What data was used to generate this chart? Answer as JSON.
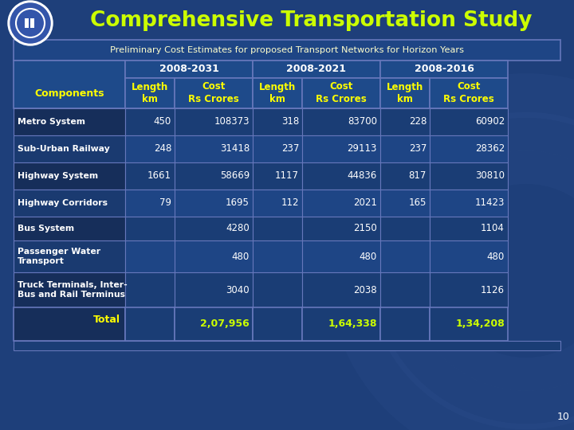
{
  "title": "Comprehensive Transportation Study",
  "subtitle": "Preliminary Cost Estimates for proposed Transport Networks for Horizon Years",
  "bg_color": "#1e3f7a",
  "title_color": "#ccff00",
  "subtitle_color": "#ffffcc",
  "header_year_color": "#ffffff",
  "component_color": "#ffff00",
  "col_header_color": "#ffff00",
  "data_color": "#ffffff",
  "total_color": "#ffff00",
  "total_data_color": "#ccff00",
  "page_num": "10",
  "years": [
    "2008-2031",
    "2008-2021",
    "2008-2016"
  ],
  "col_headers": [
    "Length\nkm",
    "Cost\nRs Crores",
    "Length\nkm",
    "Cost\nRs Crores",
    "Length\nkm",
    "Cost\nRs Crores"
  ],
  "rows": [
    {
      "component": "Metro System",
      "data": [
        "450",
        "108373",
        "318",
        "83700",
        "228",
        "60902"
      ]
    },
    {
      "component": "Sub-Urban Railway",
      "data": [
        "248",
        "31418",
        "237",
        "29113",
        "237",
        "28362"
      ]
    },
    {
      "component": "Highway System",
      "data": [
        "1661",
        "58669",
        "1117",
        "44836",
        "817",
        "30810"
      ]
    },
    {
      "component": "Highway Corridors",
      "data": [
        "79",
        "1695",
        "112",
        "2021",
        "165",
        "11423"
      ]
    },
    {
      "component": "Bus System",
      "data": [
        "",
        "4280",
        "",
        "2150",
        "",
        "1104"
      ]
    },
    {
      "component": "Passenger Water\nTransport",
      "data": [
        "",
        "480",
        "",
        "480",
        "",
        "480"
      ]
    },
    {
      "component": "Truck Terminals, Inter-\nBus and Rail Terminus",
      "data": [
        "",
        "3040",
        "",
        "2038",
        "",
        "1126"
      ]
    }
  ],
  "total_label": "Total",
  "total_data": [
    "",
    "2,07,956",
    "",
    "1,64,338",
    "",
    "1,34,208"
  ],
  "table_border": "#6677bb",
  "cell_header_bg": "#1e4a8a",
  "cell_even_bg": "#1a3d75",
  "cell_odd_bg": "#1e4585",
  "cell_comp_even": "#162e5a",
  "cell_comp_odd": "#1a3a70",
  "total_bg": "#162e5a",
  "subtitle_bg": "#1e4585"
}
